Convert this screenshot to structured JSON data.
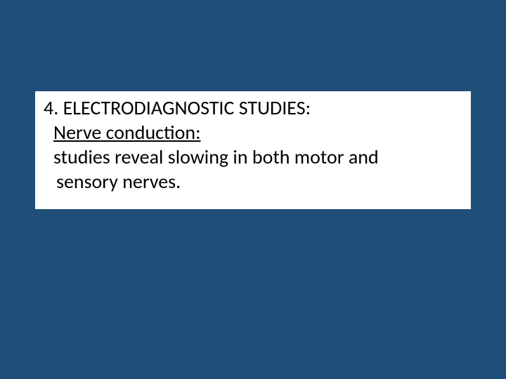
{
  "slide": {
    "background_color": "#1f4e79",
    "content_box": {
      "background_color": "#ffffff",
      "text_color": "#000000",
      "font_family": "Calibri",
      "font_size_pt": 28,
      "heading": "4. ELECTRODIAGNOSTIC STUDIES:",
      "subheading": "Nerve conduction:",
      "subheading_underline": true,
      "body_line1": "studies reveal slowing in both motor and",
      "body_line2": "sensory nerves."
    }
  }
}
